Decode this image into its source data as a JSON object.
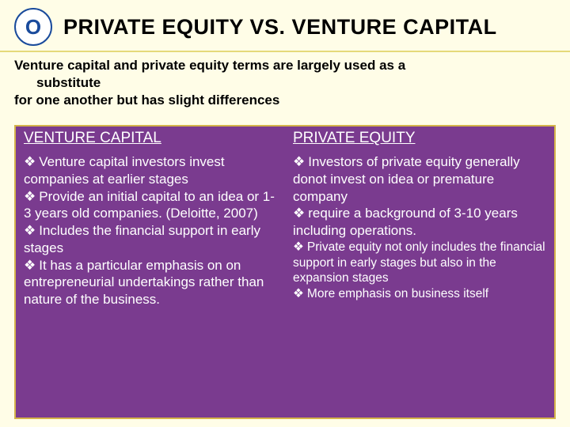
{
  "logo_letter": "O",
  "title": "PRIVATE EQUITY  VS. VENTURE CAPITAL",
  "intro_line1": "Venture capital and private equity terms are largely used as a",
  "intro_line2": "substitute",
  "intro_line3": "for one another but has slight differences",
  "left_heading": "VENTURE CAPITAL",
  "right_heading": "PRIVATE EQUITY",
  "left_items": [
    "Venture capital investors invest     companies at earlier stages",
    "Provide an initial capital  to an idea or 1-3 years old companies. (Deloitte, 2007)",
    "Includes the financial support in early stages",
    "It has a particular emphasis on on entrepreneurial undertakings rather than nature of the business."
  ],
  "right_items": [
    "Investors of private equity generally donot invest on idea or premature company",
    "require a background of 3-10 years including operations.",
    "Private equity not only includes the financial support in early stages but also in the expansion stages",
    "More emphasis on business itself"
  ],
  "colors": {
    "background": "#fffde7",
    "panel_bg": "#7a3b8f",
    "panel_border": "#d4b34a",
    "logo_blue": "#1a4b9c",
    "underline": "#e5d97a"
  }
}
